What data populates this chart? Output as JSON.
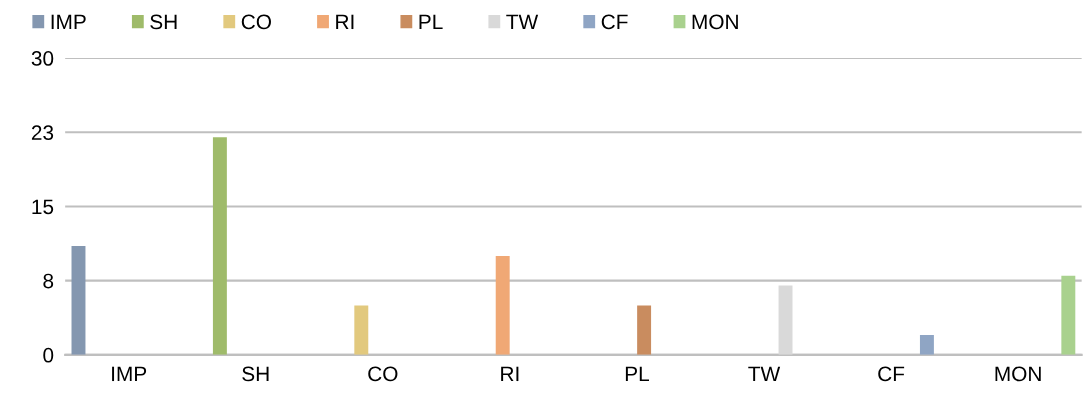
{
  "chart_data": {
    "type": "bar",
    "categories": [
      "IMP",
      "SH",
      "CO",
      "RI",
      "PL",
      "TW",
      "CF",
      "MON"
    ],
    "series": [
      {
        "name": "IMP",
        "color": "#8497b0",
        "values": [
          11,
          0,
          0,
          0,
          0,
          0,
          0,
          0
        ]
      },
      {
        "name": "SH",
        "color": "#9fbb6a",
        "values": [
          0,
          22,
          0,
          0,
          0,
          0,
          0,
          0
        ]
      },
      {
        "name": "CO",
        "color": "#e2c97e",
        "values": [
          0,
          0,
          5,
          0,
          0,
          0,
          0,
          0
        ]
      },
      {
        "name": "RI",
        "color": "#f0a875",
        "values": [
          0,
          0,
          0,
          10,
          0,
          0,
          0,
          0
        ]
      },
      {
        "name": "PL",
        "color": "#c98c5f",
        "values": [
          0,
          0,
          0,
          0,
          5,
          0,
          0,
          0
        ]
      },
      {
        "name": "TW",
        "color": "#d9d9d9",
        "values": [
          0,
          0,
          0,
          0,
          0,
          7,
          0,
          0
        ]
      },
      {
        "name": "CF",
        "color": "#8fa5c4",
        "values": [
          0,
          0,
          0,
          0,
          0,
          0,
          2,
          0
        ]
      },
      {
        "name": "MON",
        "color": "#a9d18e",
        "values": [
          0,
          0,
          0,
          0,
          0,
          0,
          0,
          8
        ]
      }
    ],
    "ylim": [
      0,
      30
    ],
    "yticks": [
      0,
      {
        "value": 7.5,
        "label": "8"
      },
      15,
      {
        "value": 22.5,
        "label": "23"
      },
      30
    ],
    "grid": "y",
    "legend": "top left"
  }
}
